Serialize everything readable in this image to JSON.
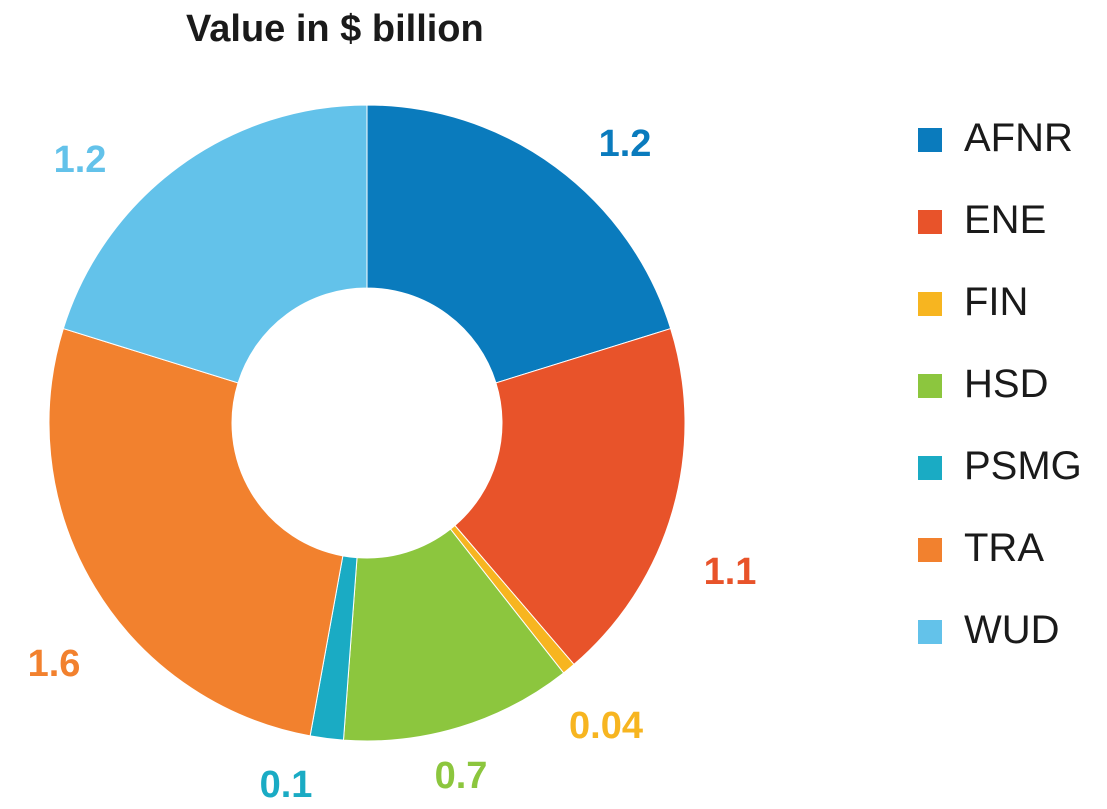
{
  "chart_data": {
    "type": "pie",
    "title": "Value in $ billion",
    "categories": [
      "AFNR",
      "ENE",
      "FIN",
      "HSD",
      "PSMG",
      "TRA",
      "WUD"
    ],
    "values": [
      1.2,
      1.1,
      0.04,
      0.7,
      0.1,
      1.6,
      1.2
    ],
    "value_labels": [
      "1.2",
      "1.1",
      "0.04",
      "0.7",
      "0.1",
      "1.6",
      "1.2"
    ],
    "colors": [
      "#0a7bbd",
      "#e8532a",
      "#f7b520",
      "#8cc63e",
      "#1aabc4",
      "#f2812e",
      "#63c2ea"
    ],
    "donut": true,
    "legend_position": "right"
  }
}
